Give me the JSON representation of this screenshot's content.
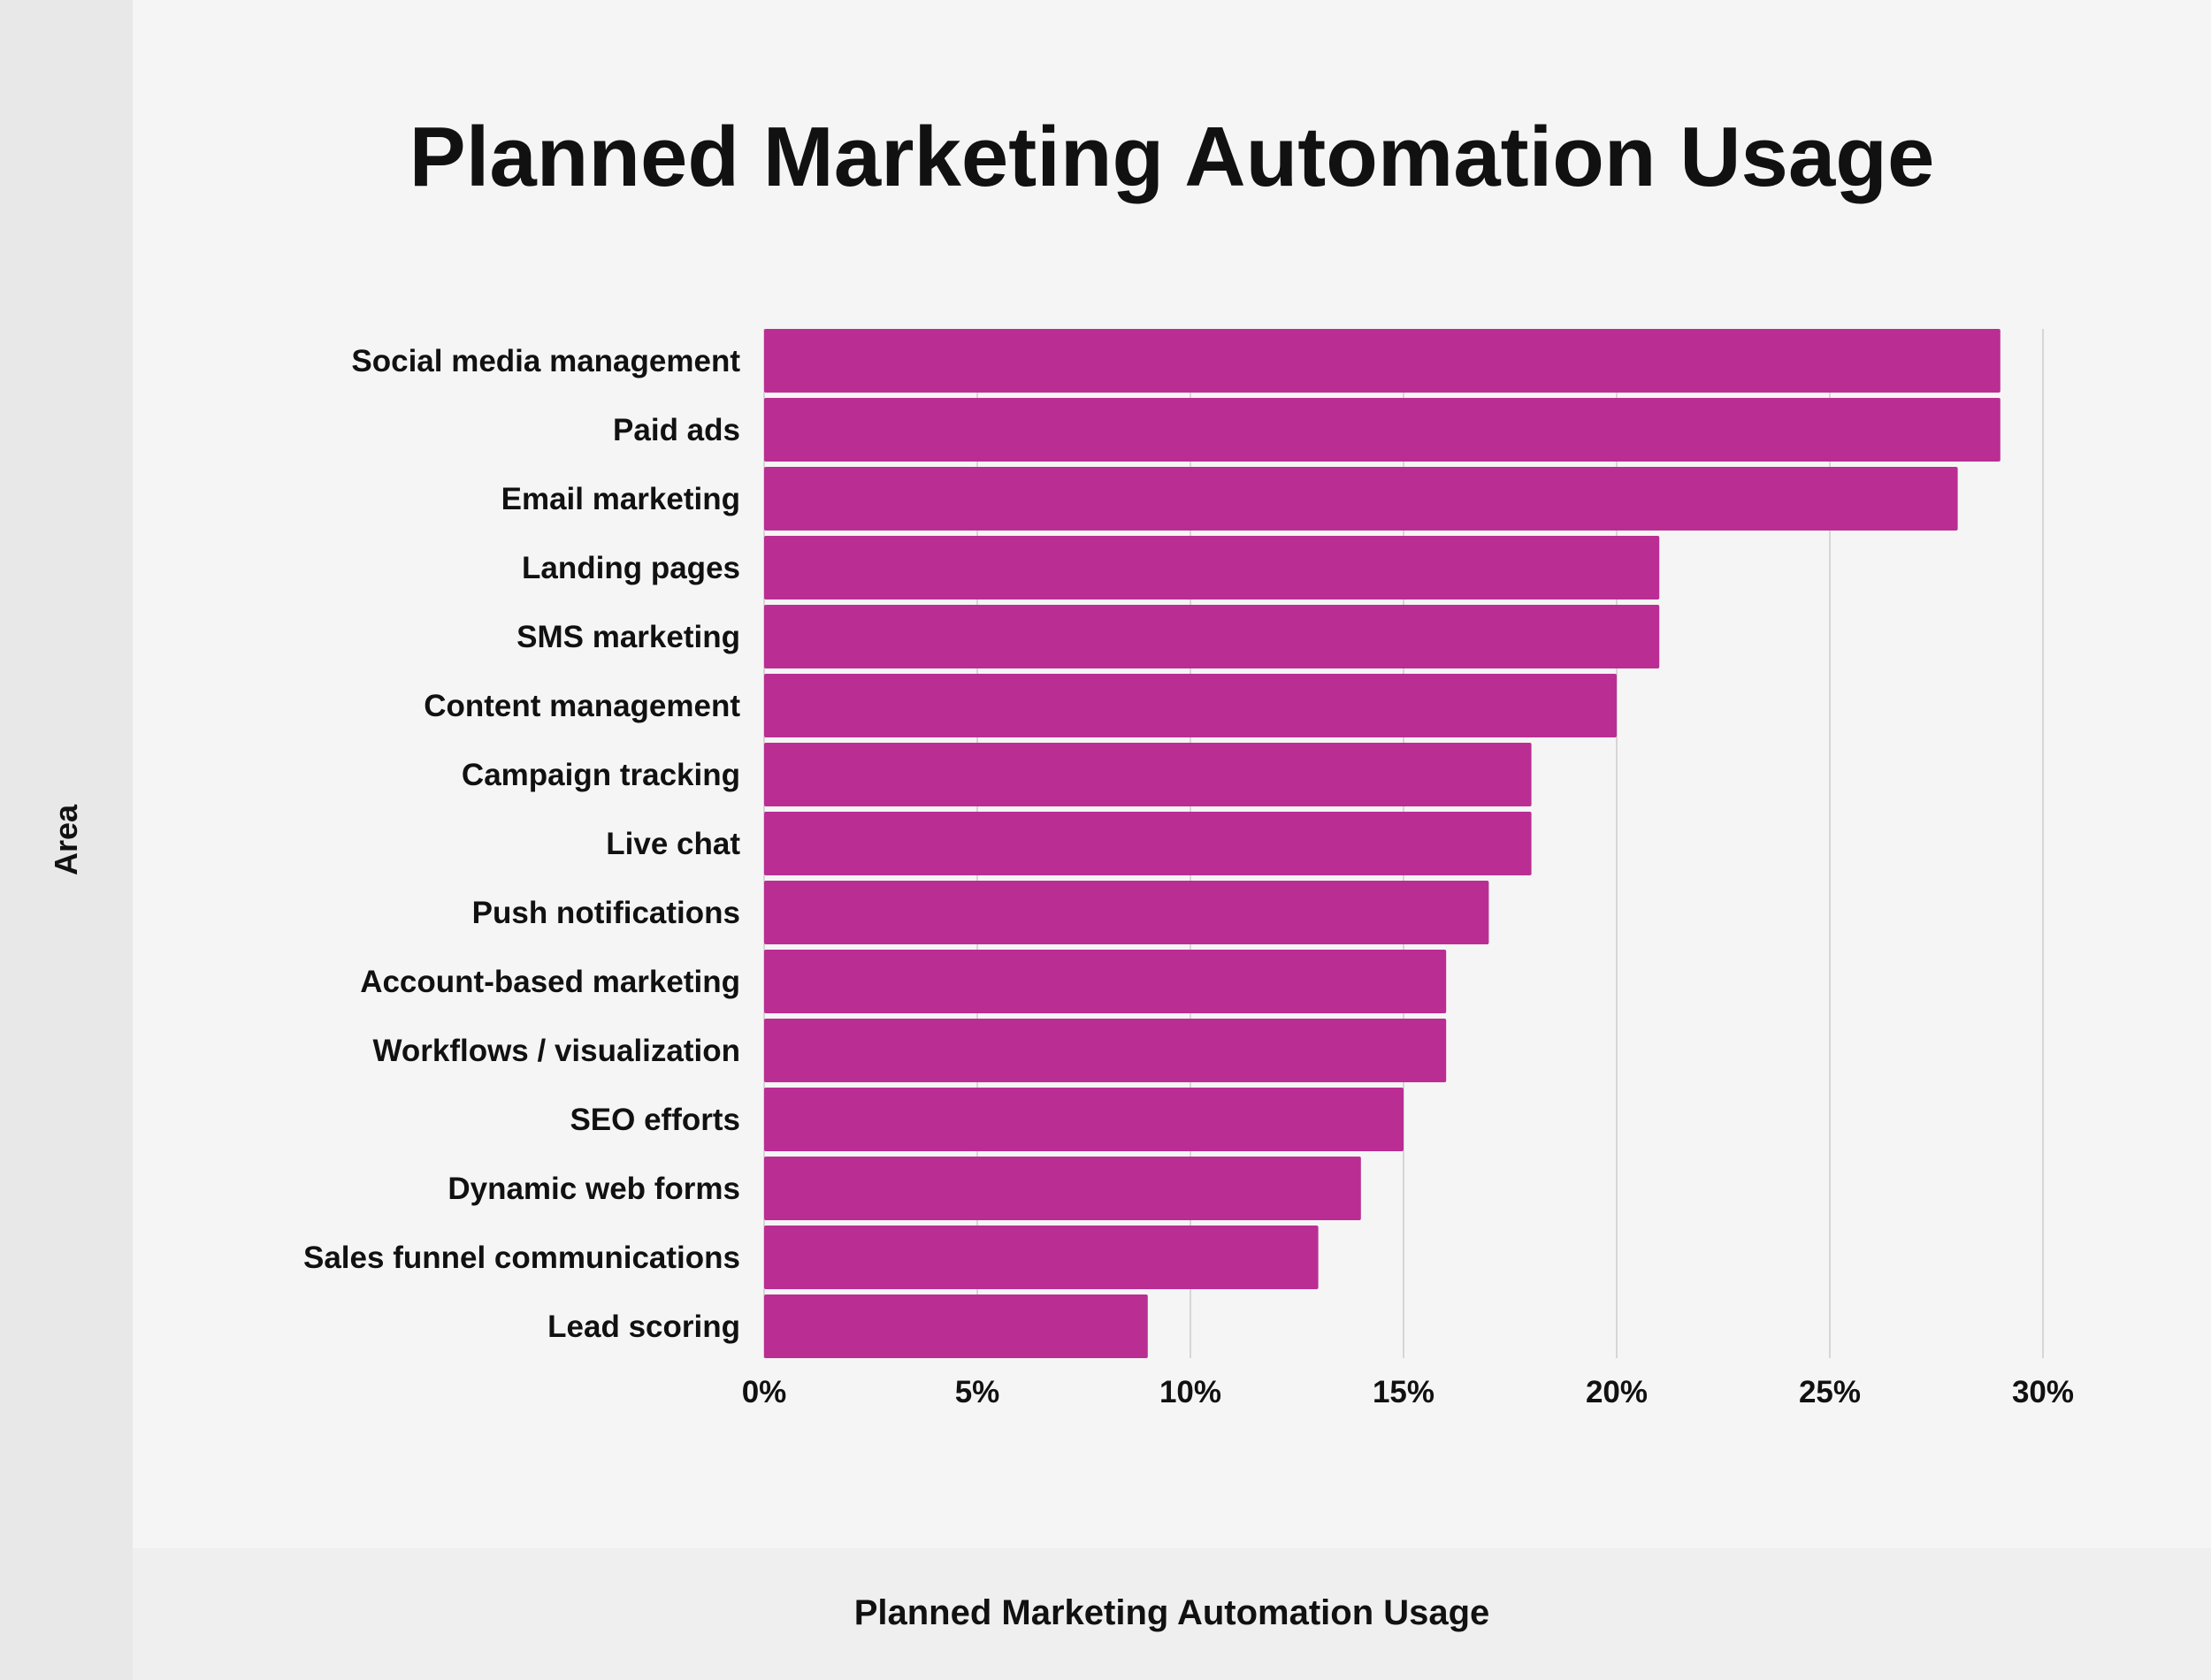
{
  "chart_data": {
    "type": "bar",
    "orientation": "horizontal",
    "title": "Planned Marketing Automation Usage",
    "xlabel": "Planned Marketing Automation Usage",
    "ylabel": "Area",
    "categories": [
      "Social media management",
      "Paid ads",
      "Email marketing",
      "Landing pages",
      "SMS marketing",
      "Content management",
      "Campaign tracking",
      "Live chat",
      "Push notifications",
      "Account-based marketing",
      "Workflows / visualization",
      "SEO efforts",
      "Dynamic web forms",
      "Sales funnel communications",
      "Lead scoring"
    ],
    "values": [
      29,
      29,
      28,
      21,
      21,
      20,
      18,
      18,
      17,
      16,
      16,
      15,
      14,
      13,
      9
    ],
    "value_unit": "%",
    "xlim": [
      0,
      30
    ],
    "xticks": [
      0,
      5,
      10,
      15,
      20,
      25,
      30
    ],
    "xtick_labels": [
      "0%",
      "5%",
      "10%",
      "15%",
      "20%",
      "25%",
      "30%"
    ],
    "grid": "vertical",
    "bar_color": "#ba2e93"
  }
}
